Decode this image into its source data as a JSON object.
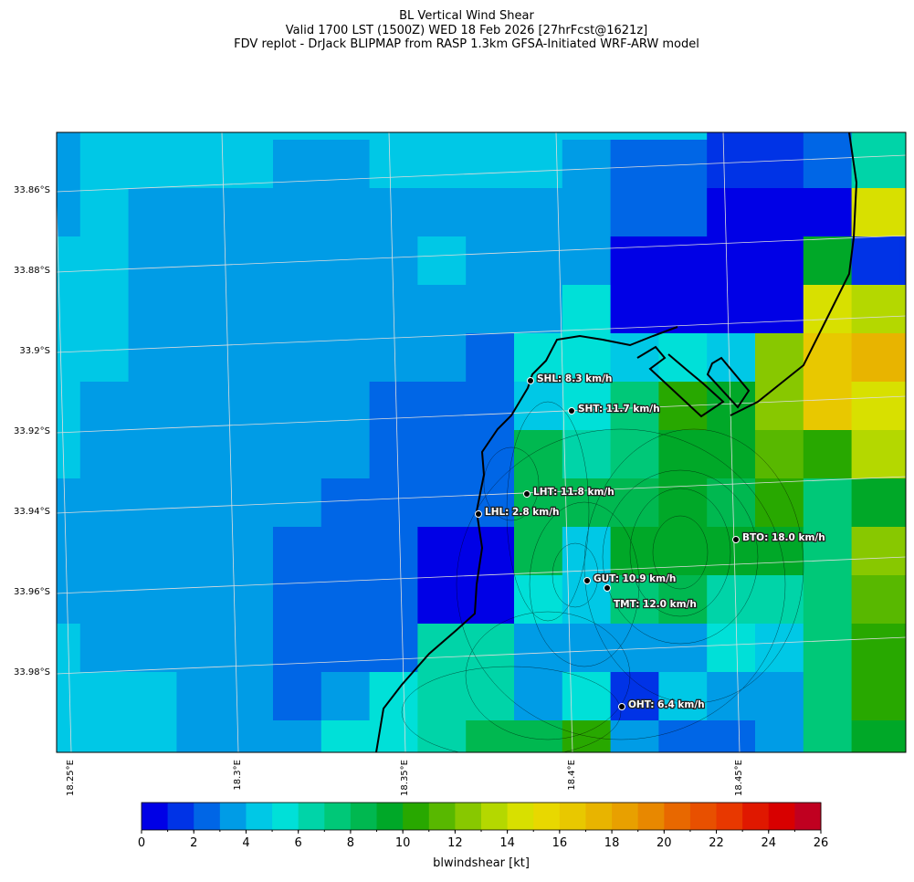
{
  "header": {
    "title": "BL Vertical Wind Shear",
    "subtitle": "Valid 1700 LST (1500Z) WED 18 Feb 2026 [27hrFcst@1621z]",
    "source": "FDV replot - DrJack BLIPMAP from RASP 1.3km GFSA-Initiated WRF-ARW model"
  },
  "map": {
    "lat_ticks": [
      "33.86°S",
      "33.88°S",
      "33.9°S",
      "33.92°S",
      "33.94°S",
      "33.96°S",
      "33.98°S"
    ],
    "lon_ticks": [
      "18.25°E",
      "18.3°E",
      "18.35°E",
      "18.4°E",
      "18.45°E"
    ],
    "stations": [
      "SHL: 8.3 km/h",
      "SHT: 11.7 km/h",
      "LHT: 11.8 km/h",
      "LHL: 2.8 km/h",
      "BTO: 18.0 km/h",
      "GUT: 10.9 km/h",
      "TMT: 12.0 km/h",
      "OHT: 6.4 km/h"
    ],
    "cells": [
      [
        3,
        4,
        4,
        4,
        4,
        4,
        4,
        4,
        4,
        4,
        4,
        4,
        4,
        4,
        1,
        1,
        2,
        6,
        6
      ],
      [
        3,
        4,
        4,
        4,
        4,
        3,
        3,
        4,
        4,
        4,
        4,
        3,
        2,
        2,
        1,
        1,
        2,
        6,
        6
      ],
      [
        3,
        4,
        3,
        3,
        3,
        3,
        3,
        3,
        3,
        3,
        3,
        3,
        2,
        2,
        0,
        0,
        0,
        14,
        14
      ],
      [
        4,
        4,
        3,
        3,
        3,
        3,
        3,
        3,
        4,
        3,
        3,
        3,
        0,
        0,
        0,
        0,
        9,
        1,
        1
      ],
      [
        4,
        4,
        3,
        3,
        3,
        3,
        3,
        3,
        3,
        3,
        3,
        5,
        0,
        0,
        0,
        0,
        14,
        13,
        13
      ],
      [
        4,
        4,
        3,
        3,
        3,
        3,
        3,
        3,
        3,
        2,
        5,
        5,
        4,
        5,
        4,
        12,
        16,
        17,
        17
      ],
      [
        4,
        3,
        3,
        3,
        3,
        3,
        3,
        2,
        2,
        2,
        4,
        5,
        7,
        10,
        9,
        12,
        16,
        15,
        15
      ],
      [
        4,
        3,
        3,
        3,
        3,
        3,
        3,
        2,
        2,
        2,
        8,
        6,
        7,
        9,
        9,
        11,
        10,
        13,
        13
      ],
      [
        3,
        3,
        3,
        3,
        3,
        3,
        2,
        2,
        2,
        2,
        8,
        8,
        8,
        9,
        8,
        10,
        7,
        9,
        9
      ],
      [
        3,
        3,
        3,
        3,
        3,
        2,
        2,
        2,
        0,
        0,
        8,
        4,
        9,
        9,
        9,
        9,
        7,
        12,
        12
      ],
      [
        3,
        3,
        3,
        3,
        3,
        2,
        2,
        2,
        0,
        0,
        5,
        4,
        7,
        8,
        6,
        6,
        7,
        11,
        11
      ],
      [
        4,
        3,
        3,
        3,
        3,
        2,
        2,
        2,
        6,
        6,
        3,
        3,
        3,
        3,
        5,
        4,
        7,
        10,
        10
      ],
      [
        4,
        4,
        4,
        3,
        3,
        2,
        3,
        5,
        6,
        6,
        3,
        5,
        1,
        4,
        3,
        3,
        7,
        10,
        10
      ],
      [
        4,
        4,
        4,
        3,
        3,
        3,
        5,
        5,
        6,
        8,
        8,
        10,
        3,
        2,
        2,
        3,
        7,
        9,
        9
      ]
    ]
  },
  "colorbar": {
    "label": "blwindshear [kt]",
    "lim": [
      0,
      26
    ],
    "ticks": [
      0,
      2,
      4,
      6,
      8,
      10,
      12,
      14,
      16,
      18,
      20,
      22,
      24,
      26
    ],
    "colors": [
      "#0000e6",
      "#0033e6",
      "#0066e6",
      "#009ce6",
      "#00c8e6",
      "#00e0d8",
      "#00d4a8",
      "#00c878",
      "#00b850",
      "#00a828",
      "#28a800",
      "#58b800",
      "#88c800",
      "#b4d800",
      "#d8e000",
      "#e8d800",
      "#e8c800",
      "#e8b400",
      "#e8a000",
      "#e88800",
      "#e86800",
      "#e85000",
      "#e83800",
      "#e01800",
      "#d80000",
      "#c00020"
    ]
  }
}
